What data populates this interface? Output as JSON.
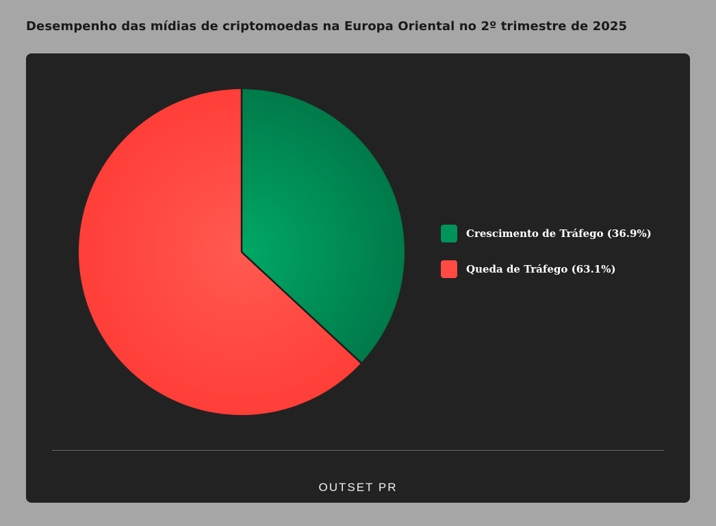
{
  "title": "Desempenho das mídias de criptomoedas na Europa Oriental no 2º trimestre de 2025",
  "logo": "OUTSET PR",
  "colors": {
    "background": "#a6a6a6",
    "card": "#222222",
    "growth": "#00935a",
    "decline": "#ff4b44"
  },
  "chart_data": {
    "type": "pie",
    "title": "Desempenho das mídias de criptomoedas na Europa Oriental no 2º trimestre de 2025",
    "legend_position": "right",
    "slices": [
      {
        "label": "Crescimento de Tráfego",
        "value": 36.9,
        "display": "Crescimento de Tráfego (36.9%)",
        "color": "#00935a"
      },
      {
        "label": "Queda de Tráfego",
        "value": 63.1,
        "display": "Queda de Tráfego (63.1%)",
        "color": "#ff4b44"
      }
    ]
  }
}
